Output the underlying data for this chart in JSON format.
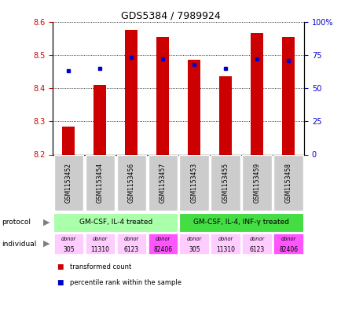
{
  "title": "GDS5384 / 7989924",
  "samples": [
    "GSM1153452",
    "GSM1153454",
    "GSM1153456",
    "GSM1153457",
    "GSM1153453",
    "GSM1153455",
    "GSM1153459",
    "GSM1153458"
  ],
  "bar_values": [
    8.285,
    8.41,
    8.575,
    8.555,
    8.485,
    8.435,
    8.565,
    8.555
  ],
  "bar_base": 8.2,
  "percentile_values": [
    0.63,
    0.65,
    0.73,
    0.72,
    0.68,
    0.65,
    0.72,
    0.71
  ],
  "ylim_left": [
    8.2,
    8.6
  ],
  "ylim_right": [
    0,
    1.0
  ],
  "yticks_left": [
    8.2,
    8.3,
    8.4,
    8.5,
    8.6
  ],
  "yticks_right": [
    0,
    0.25,
    0.5,
    0.75,
    1.0
  ],
  "ytick_labels_right": [
    "0",
    "25",
    "50",
    "75",
    "100%"
  ],
  "bar_color": "#cc0000",
  "dot_color": "#0000cc",
  "protocol_labels": [
    "GM-CSF, IL-4 treated",
    "GM-CSF, IL-4, INF-γ treated"
  ],
  "protocol_color_1": "#aaffaa",
  "protocol_color_2": "#44dd44",
  "individual_labels": [
    "donor\n305",
    "donor\n11310",
    "donor\n6123",
    "donor\n82406",
    "donor\n305",
    "donor\n11310",
    "donor\n6123",
    "donor\n82406"
  ],
  "individual_colors": [
    "#ffccff",
    "#ffccff",
    "#ffccff",
    "#ff55ff",
    "#ffccff",
    "#ffccff",
    "#ffccff",
    "#ff55ff"
  ],
  "sample_bg_color": "#cccccc",
  "legend_items": [
    "transformed count",
    "percentile rank within the sample"
  ]
}
